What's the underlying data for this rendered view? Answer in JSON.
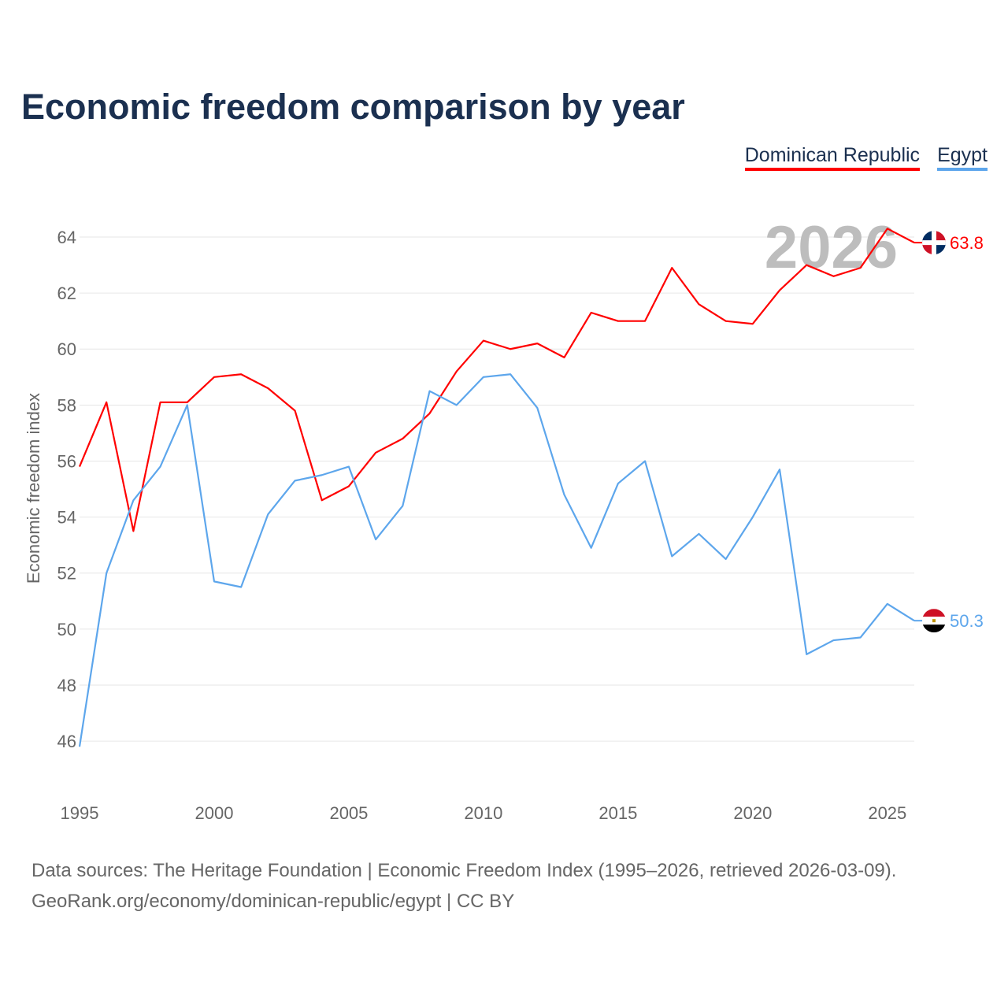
{
  "chart_data": {
    "type": "line",
    "title": "Economic freedom comparison by year",
    "xlabel": "",
    "ylabel": "Economic freedom index",
    "x": [
      1995,
      1996,
      1997,
      1998,
      1999,
      2000,
      2001,
      2002,
      2003,
      2004,
      2005,
      2006,
      2007,
      2008,
      2009,
      2010,
      2011,
      2012,
      2013,
      2014,
      2015,
      2016,
      2017,
      2018,
      2019,
      2020,
      2021,
      2022,
      2023,
      2024,
      2025,
      2026
    ],
    "xlim": [
      1995,
      2026
    ],
    "ylim": [
      45,
      64.6
    ],
    "xticks": [
      1995,
      2000,
      2005,
      2010,
      2015,
      2020,
      2025
    ],
    "yticks": [
      46,
      48,
      50,
      52,
      54,
      56,
      58,
      60,
      62,
      64
    ],
    "grid": true,
    "legend_position": "top-right",
    "year_watermark": "2026",
    "series": [
      {
        "name": "Dominican Republic",
        "color": "#ff0000",
        "end_label": "63.8",
        "values": [
          55.8,
          58.1,
          53.5,
          58.1,
          58.1,
          59.0,
          59.1,
          58.6,
          57.8,
          54.6,
          55.1,
          56.3,
          56.8,
          57.7,
          59.2,
          60.3,
          60.0,
          60.2,
          59.7,
          61.3,
          61.0,
          61.0,
          62.9,
          61.6,
          61.0,
          60.9,
          62.1,
          63.0,
          62.6,
          62.9,
          64.3,
          63.8
        ]
      },
      {
        "name": "Egypt",
        "color": "#5da6ec",
        "end_label": "50.3",
        "values": [
          45.8,
          52.0,
          54.6,
          55.8,
          58.0,
          51.7,
          51.5,
          54.1,
          55.3,
          55.5,
          55.8,
          53.2,
          54.4,
          58.5,
          58.0,
          59.0,
          59.1,
          57.9,
          54.8,
          52.9,
          55.2,
          56.0,
          52.6,
          53.4,
          52.5,
          54.0,
          55.7,
          49.1,
          49.6,
          49.7,
          50.9,
          50.3
        ]
      }
    ]
  },
  "footer": {
    "line1": "Data sources: The Heritage Foundation | Economic Freedom Index (1995–2026, retrieved 2026-03-09).",
    "line2": "GeoRank.org/economy/dominican-republic/egypt | CC BY"
  }
}
